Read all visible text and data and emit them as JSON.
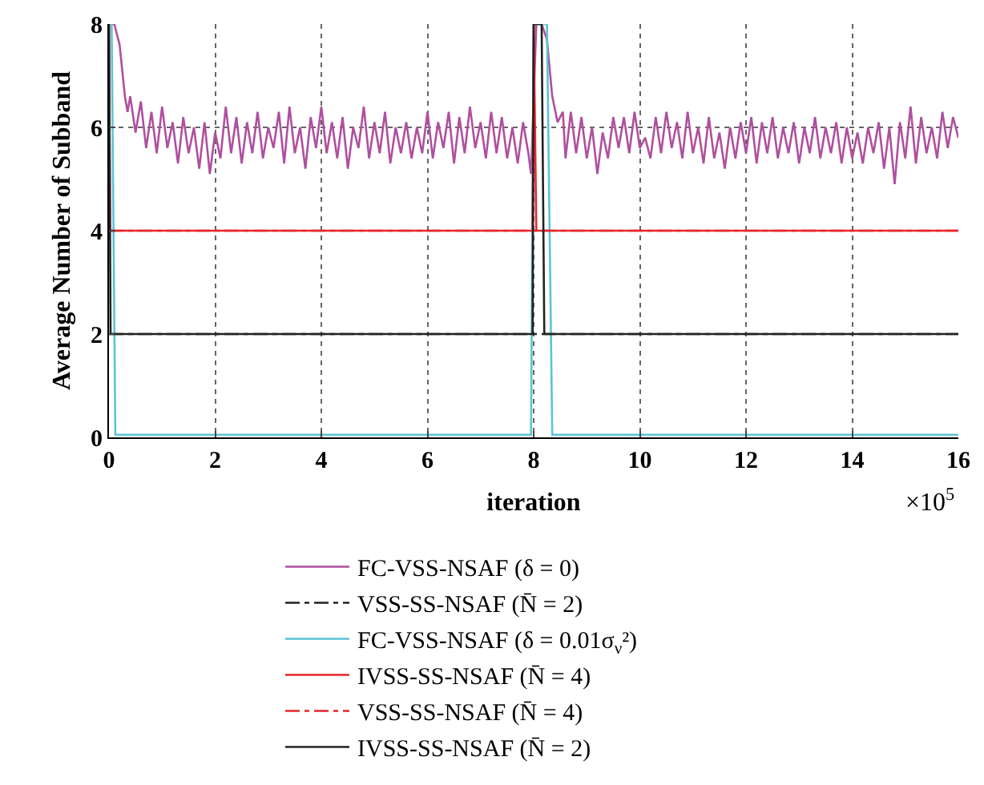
{
  "chart_data": {
    "type": "line",
    "xlabel": "iteration",
    "ylabel": "Average Number of Subband",
    "xlim": [
      0,
      16
    ],
    "ylim": [
      0,
      8
    ],
    "xticks": [
      0,
      2,
      4,
      6,
      8,
      10,
      12,
      14,
      16
    ],
    "yticks": [
      0,
      2,
      4,
      6,
      8
    ],
    "grid": true,
    "legend": "bottom",
    "marker": "none",
    "annotations": [
      "×10$^{5}$"
    ],
    "series": [
      {
        "name": "FC-VSS-NSAF (δ = 0)",
        "color": "#b04f9f",
        "line_style": "solid",
        "x": [
          0,
          0.1,
          0.2,
          0.3,
          0.35,
          0.4,
          0.5,
          0.6,
          0.7,
          0.8,
          0.9,
          1.0,
          1.1,
          1.2,
          1.3,
          1.4,
          1.5,
          1.6,
          1.7,
          1.8,
          1.9,
          2.0,
          2.1,
          2.2,
          2.3,
          2.4,
          2.5,
          2.6,
          2.7,
          2.8,
          2.9,
          3.0,
          3.1,
          3.2,
          3.3,
          3.4,
          3.5,
          3.6,
          3.7,
          3.8,
          3.9,
          4.0,
          4.1,
          4.2,
          4.3,
          4.4,
          4.5,
          4.6,
          4.7,
          4.8,
          4.9,
          5.0,
          5.1,
          5.2,
          5.3,
          5.4,
          5.5,
          5.6,
          5.7,
          5.8,
          5.9,
          6.0,
          6.1,
          6.2,
          6.3,
          6.4,
          6.5,
          6.6,
          6.7,
          6.8,
          6.9,
          7.0,
          7.1,
          7.2,
          7.3,
          7.4,
          7.5,
          7.6,
          7.7,
          7.8,
          7.9,
          7.95,
          8.05,
          8.15,
          8.25,
          8.35,
          8.45,
          8.55,
          8.6,
          8.7,
          8.8,
          8.9,
          9.0,
          9.1,
          9.2,
          9.3,
          9.4,
          9.5,
          9.6,
          9.7,
          9.8,
          9.9,
          10.0,
          10.1,
          10.2,
          10.3,
          10.4,
          10.5,
          10.6,
          10.7,
          10.8,
          10.9,
          11.0,
          11.1,
          11.2,
          11.3,
          11.4,
          11.5,
          11.6,
          11.7,
          11.8,
          11.9,
          12.0,
          12.1,
          12.2,
          12.3,
          12.4,
          12.5,
          12.6,
          12.7,
          12.8,
          12.9,
          13.0,
          13.1,
          13.2,
          13.3,
          13.4,
          13.5,
          13.6,
          13.7,
          13.8,
          13.9,
          14.0,
          14.1,
          14.2,
          14.3,
          14.4,
          14.5,
          14.6,
          14.7,
          14.8,
          14.9,
          15.0,
          15.1,
          15.2,
          15.3,
          15.4,
          15.5,
          15.6,
          15.7,
          15.8,
          15.9,
          16.0
        ],
        "values": [
          8,
          8,
          7.6,
          6.6,
          6.3,
          6.6,
          5.9,
          6.5,
          5.6,
          6.3,
          5.5,
          6.4,
          5.6,
          6.1,
          5.3,
          6.2,
          5.5,
          6.0,
          5.2,
          6.1,
          5.1,
          5.9,
          5.4,
          6.4,
          5.5,
          6.2,
          5.3,
          6.1,
          5.5,
          6.3,
          5.4,
          6.0,
          5.6,
          6.3,
          5.3,
          6.4,
          5.5,
          6.0,
          5.2,
          6.2,
          5.6,
          6.4,
          5.5,
          6.1,
          5.4,
          6.2,
          5.2,
          6.0,
          5.6,
          6.4,
          5.4,
          6.1,
          5.5,
          6.3,
          5.3,
          6.0,
          5.5,
          6.1,
          5.4,
          6.0,
          5.5,
          6.3,
          5.4,
          6.1,
          5.6,
          6.3,
          5.3,
          6.2,
          5.5,
          6.4,
          5.6,
          6.1,
          5.4,
          6.3,
          5.5,
          6.2,
          5.4,
          6.0,
          5.3,
          6.1,
          5.5,
          5.1,
          8,
          8,
          7.7,
          6.6,
          6.1,
          6.3,
          5.4,
          6.3,
          5.5,
          6.2,
          5.4,
          6.0,
          5.1,
          5.9,
          5.4,
          6.2,
          5.6,
          6.2,
          5.5,
          6.3,
          5.6,
          5.8,
          5.4,
          6.2,
          5.5,
          6.3,
          5.6,
          6.1,
          5.4,
          6.3,
          5.5,
          6.0,
          5.3,
          6.2,
          5.4,
          5.9,
          5.2,
          6.0,
          5.4,
          6.1,
          5.5,
          6.2,
          5.3,
          6.1,
          5.5,
          6.2,
          5.4,
          6.0,
          5.5,
          6.1,
          5.3,
          6.0,
          5.5,
          6.2,
          5.4,
          6.0,
          5.5,
          6.1,
          5.3,
          6.0,
          5.4,
          5.9,
          5.3,
          6.0,
          5.5,
          6.1,
          5.2,
          6.0,
          4.9,
          6.1,
          5.4,
          6.4,
          5.3,
          6.2,
          5.5,
          6.0,
          5.4,
          6.3,
          5.6,
          6.2,
          5.8
        ]
      },
      {
        "name": "FC-VSS-NSAF (δ = 0.01σ$_{ν}$²)",
        "color": "#5bc4d4",
        "line_style": "solid",
        "x": [
          0,
          0.05,
          0.12,
          4,
          7.95,
          8.0,
          8.25,
          8.35,
          16
        ],
        "values": [
          8,
          8,
          0.05,
          0.05,
          0.05,
          8,
          8,
          0.05,
          0.05
        ]
      },
      {
        "name": "VSS-SS-NSAF (N̄ = 4)",
        "color": "#e8262a",
        "line_style": "dashdot",
        "x": [
          0,
          16
        ],
        "values": [
          4,
          4
        ]
      },
      {
        "name": "VSS-SS-NSAF (N̄ = 2)",
        "color": "#222222",
        "line_style": "dashdot",
        "x": [
          0,
          16
        ],
        "values": [
          2,
          2
        ]
      },
      {
        "name": "IVSS-SS-NSAF (N̄ = 4)",
        "color": "#e8262a",
        "line_style": "solid",
        "x": [
          0,
          0.02,
          7.98,
          8.0,
          8.05,
          16
        ],
        "values": [
          8,
          4,
          4,
          8,
          4,
          4
        ]
      },
      {
        "name": "IVSS-SS-NSAF (N̄ = 2)",
        "color": "#222222",
        "line_style": "solid",
        "x": [
          0,
          0.03,
          7.98,
          8.0,
          8.15,
          8.2,
          16
        ],
        "values": [
          8,
          2,
          2,
          8,
          8,
          2,
          2
        ]
      }
    ]
  }
}
